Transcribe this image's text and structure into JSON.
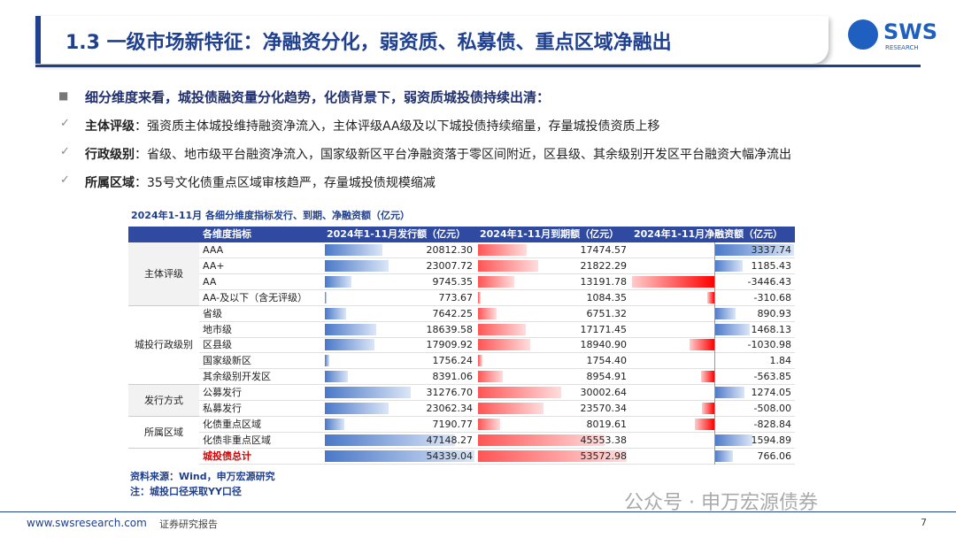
{
  "header": {
    "title": "1.3 一级市场新特征：净融资分化，弱资质、私募债、重点区域净融出",
    "logo": "SWS",
    "logo_sub": "RESEARCH"
  },
  "summary": {
    "lead": "细分维度来看，城投债融资量分化趋势，化债背景下，弱资质城投债持续出清：",
    "items": [
      {
        "label": "主体评级",
        "text": "：强资质主体城投维持融资净流入，主体评级AA级及以下城投债持续缩量，存量城投债资质上移"
      },
      {
        "label": "行政级别",
        "text": "：省级、地市级平台融资净流入，国家级新区平台净融资落于零区间附近，区县级、其余级别开发区平台融资大幅净流出"
      },
      {
        "label": "所属区域",
        "text": "：35号文化债重点区域审核趋严，存量城投债规模缩减"
      }
    ]
  },
  "table": {
    "title": "2024年1-11月 各细分维度指标发行、到期、净融资额（亿元）",
    "columns": [
      "各维度指标",
      "2024年1-11月发行额（亿元）",
      "2024年1-11月到期额（亿元）",
      "2024年1-11月净融资额（亿元）"
    ],
    "groups": [
      {
        "name": "主体评级",
        "rows": [
          {
            "label": "AAA",
            "values": [
              20812.3,
              17474.57,
              3337.74
            ],
            "value_labels": [
              "20812.30",
              "17474.57",
              "3337.74"
            ]
          },
          {
            "label": "AA+",
            "values": [
              23007.72,
              21822.29,
              1185.43
            ],
            "value_labels": [
              "23007.72",
              "21822.29",
              "1185.43"
            ]
          },
          {
            "label": "AA",
            "values": [
              9745.35,
              13191.78,
              -3446.43
            ],
            "value_labels": [
              "9745.35",
              "13191.78",
              "-3446.43"
            ]
          },
          {
            "label": "AA-及以下（含无评级）",
            "values": [
              773.67,
              1084.35,
              -310.68
            ],
            "value_labels": [
              "773.67",
              "1084.35",
              "-310.68"
            ]
          }
        ]
      },
      {
        "name": "城投行政级别",
        "rows": [
          {
            "label": "省级",
            "values": [
              7642.25,
              6751.32,
              890.93
            ],
            "value_labels": [
              "7642.25",
              "6751.32",
              "890.93"
            ]
          },
          {
            "label": "地市级",
            "values": [
              18639.58,
              17171.45,
              1468.13
            ],
            "value_labels": [
              "18639.58",
              "17171.45",
              "1468.13"
            ]
          },
          {
            "label": "区县级",
            "values": [
              17909.92,
              18940.9,
              -1030.98
            ],
            "value_labels": [
              "17909.92",
              "18940.90",
              "-1030.98"
            ]
          },
          {
            "label": "国家级新区",
            "values": [
              1756.24,
              1754.4,
              1.84
            ],
            "value_labels": [
              "1756.24",
              "1754.40",
              "1.84"
            ]
          },
          {
            "label": "其余级别开发区",
            "values": [
              8391.06,
              8954.91,
              -563.85
            ],
            "value_labels": [
              "8391.06",
              "8954.91",
              "-563.85"
            ]
          }
        ]
      },
      {
        "name": "发行方式",
        "rows": [
          {
            "label": "公募发行",
            "values": [
              31276.7,
              30002.64,
              1274.05
            ],
            "value_labels": [
              "31276.70",
              "30002.64",
              "1274.05"
            ]
          },
          {
            "label": "私募发行",
            "values": [
              23062.34,
              23570.34,
              -508
            ],
            "value_labels": [
              "23062.34",
              "23570.34",
              "-508.00"
            ]
          }
        ]
      },
      {
        "name": "所属区域",
        "rows": [
          {
            "label": "化债重点区域",
            "values": [
              7190.77,
              8019.61,
              -828.84
            ],
            "value_labels": [
              "7190.77",
              "8019.61",
              "-828.84"
            ]
          },
          {
            "label": "化债非重点区域",
            "values": [
              47148.27,
              45553.38,
              1594.89
            ],
            "value_labels": [
              "47148.27",
              "45553.38",
              "1594.89"
            ]
          }
        ]
      }
    ],
    "total": {
      "label": "城投债总计",
      "values": [
        54339.04,
        53572.98,
        766.06
      ],
      "value_labels": [
        "54339.04",
        "53572.98",
        "766.06"
      ]
    },
    "source": "资料来源：Wind，申万宏源研究",
    "note": "注：城投口径采取YY口径"
  },
  "footer": {
    "url": "www.swsresearch.com",
    "doc_type": "证券研究报告",
    "page": "7",
    "watermark": "公众号 · 申万宏源债券"
  }
}
